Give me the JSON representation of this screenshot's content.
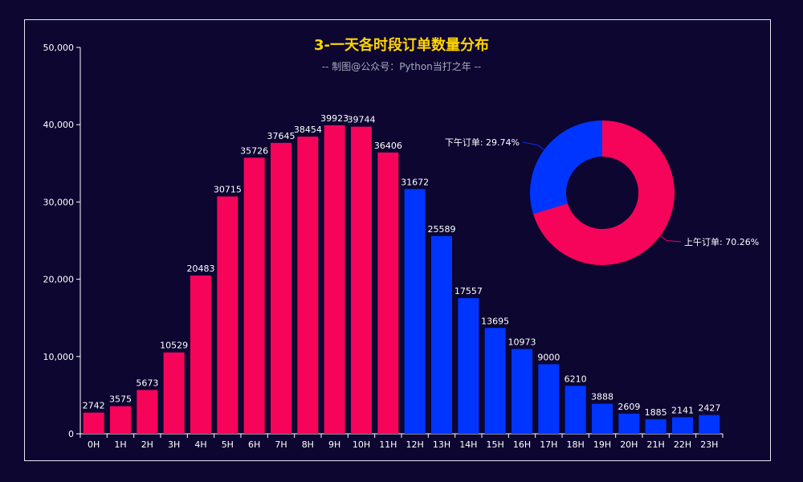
{
  "title": "3-一天各时段订单数量分布",
  "subtitle": "-- 制图@公众号：Python当打之年 --",
  "colors": {
    "background": "#0c0631",
    "morning": "#f5045a",
    "afternoon": "#0035ff",
    "text": "#ffffff"
  },
  "chart_data": [
    {
      "type": "bar",
      "categories": [
        "0H",
        "1H",
        "2H",
        "3H",
        "4H",
        "5H",
        "6H",
        "7H",
        "8H",
        "9H",
        "10H",
        "11H",
        "12H",
        "13H",
        "14H",
        "15H",
        "16H",
        "17H",
        "18H",
        "19H",
        "20H",
        "21H",
        "22H",
        "23H"
      ],
      "values": [
        2742,
        3575,
        5673,
        10529,
        20483,
        30715,
        35726,
        37645,
        38454,
        39923,
        39744,
        36406,
        31672,
        25589,
        17557,
        13695,
        10973,
        9000,
        6210,
        3888,
        2609,
        1885,
        2141,
        2427
      ],
      "ylim": [
        0,
        50000
      ],
      "yticks": [
        "0",
        "10,000",
        "20,000",
        "30,000",
        "40,000",
        "50,000"
      ],
      "grid": false
    },
    {
      "type": "pie",
      "style": "donut",
      "slices": [
        {
          "label": "上午订单: 70.26%",
          "value": 70.26
        },
        {
          "label": "下午订单: 29.74%",
          "value": 29.74
        }
      ]
    }
  ]
}
